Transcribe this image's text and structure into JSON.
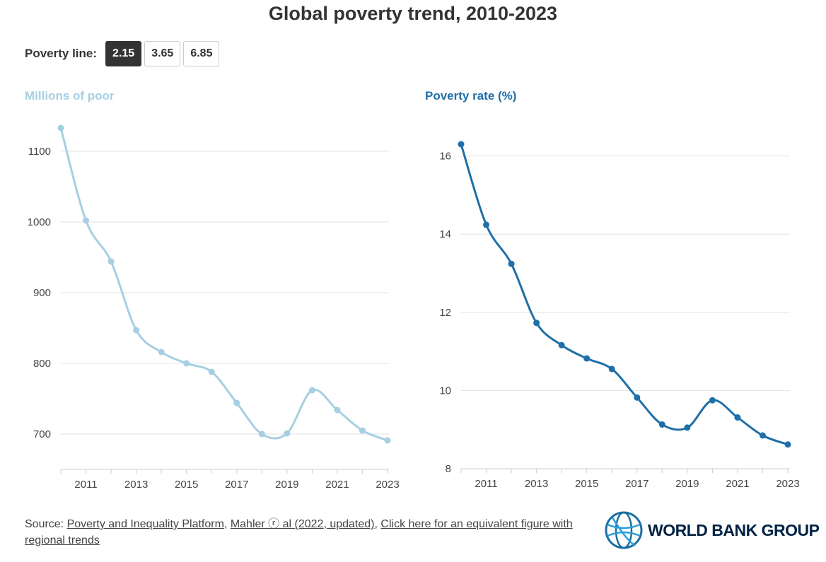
{
  "title": "Global poverty trend, 2010-2023",
  "poverty_line": {
    "label": "Poverty line:",
    "options": [
      "2.15",
      "3.65",
      "6.85"
    ],
    "selected": "2.15"
  },
  "chart_data": [
    {
      "type": "line",
      "title": "Millions of poor",
      "color": "#a6cfe2",
      "x": [
        2010,
        2011,
        2012,
        2013,
        2014,
        2015,
        2016,
        2017,
        2018,
        2019,
        2020,
        2021,
        2022,
        2023
      ],
      "values": [
        1133,
        1002,
        944,
        847,
        816,
        800,
        788,
        744,
        700,
        701,
        762,
        734,
        705,
        691
      ],
      "yticks": [
        700,
        800,
        900,
        1000,
        1100
      ],
      "xticks": [
        2011,
        2013,
        2015,
        2017,
        2019,
        2021,
        2023
      ],
      "ylim": [
        650,
        1150
      ],
      "xlim": [
        2010,
        2023
      ],
      "grid": true
    },
    {
      "type": "line",
      "title": "Poverty rate (%)",
      "color": "#1f6fa8",
      "x": [
        2010,
        2011,
        2012,
        2013,
        2014,
        2015,
        2016,
        2017,
        2018,
        2019,
        2020,
        2021,
        2022,
        2023
      ],
      "values": [
        16.3,
        14.24,
        13.24,
        11.73,
        11.16,
        10.82,
        10.55,
        9.82,
        9.13,
        9.05,
        9.75,
        9.31,
        8.85,
        8.62
      ],
      "yticks": [
        8,
        10,
        12,
        14,
        16
      ],
      "xticks": [
        2011,
        2013,
        2015,
        2017,
        2019,
        2021,
        2023
      ],
      "ylim": [
        8,
        17
      ],
      "xlim": [
        2010,
        2023
      ],
      "grid": true
    }
  ],
  "footer": {
    "source_label": "Source:",
    "link1": "Poverty and Inequality Platform",
    "link2": "Mahler ⓡ al (2022, updated)",
    "link3": "Click here for an equivalent figure with regional trends"
  },
  "logo": {
    "text": "WORLD BANK GROUP"
  }
}
